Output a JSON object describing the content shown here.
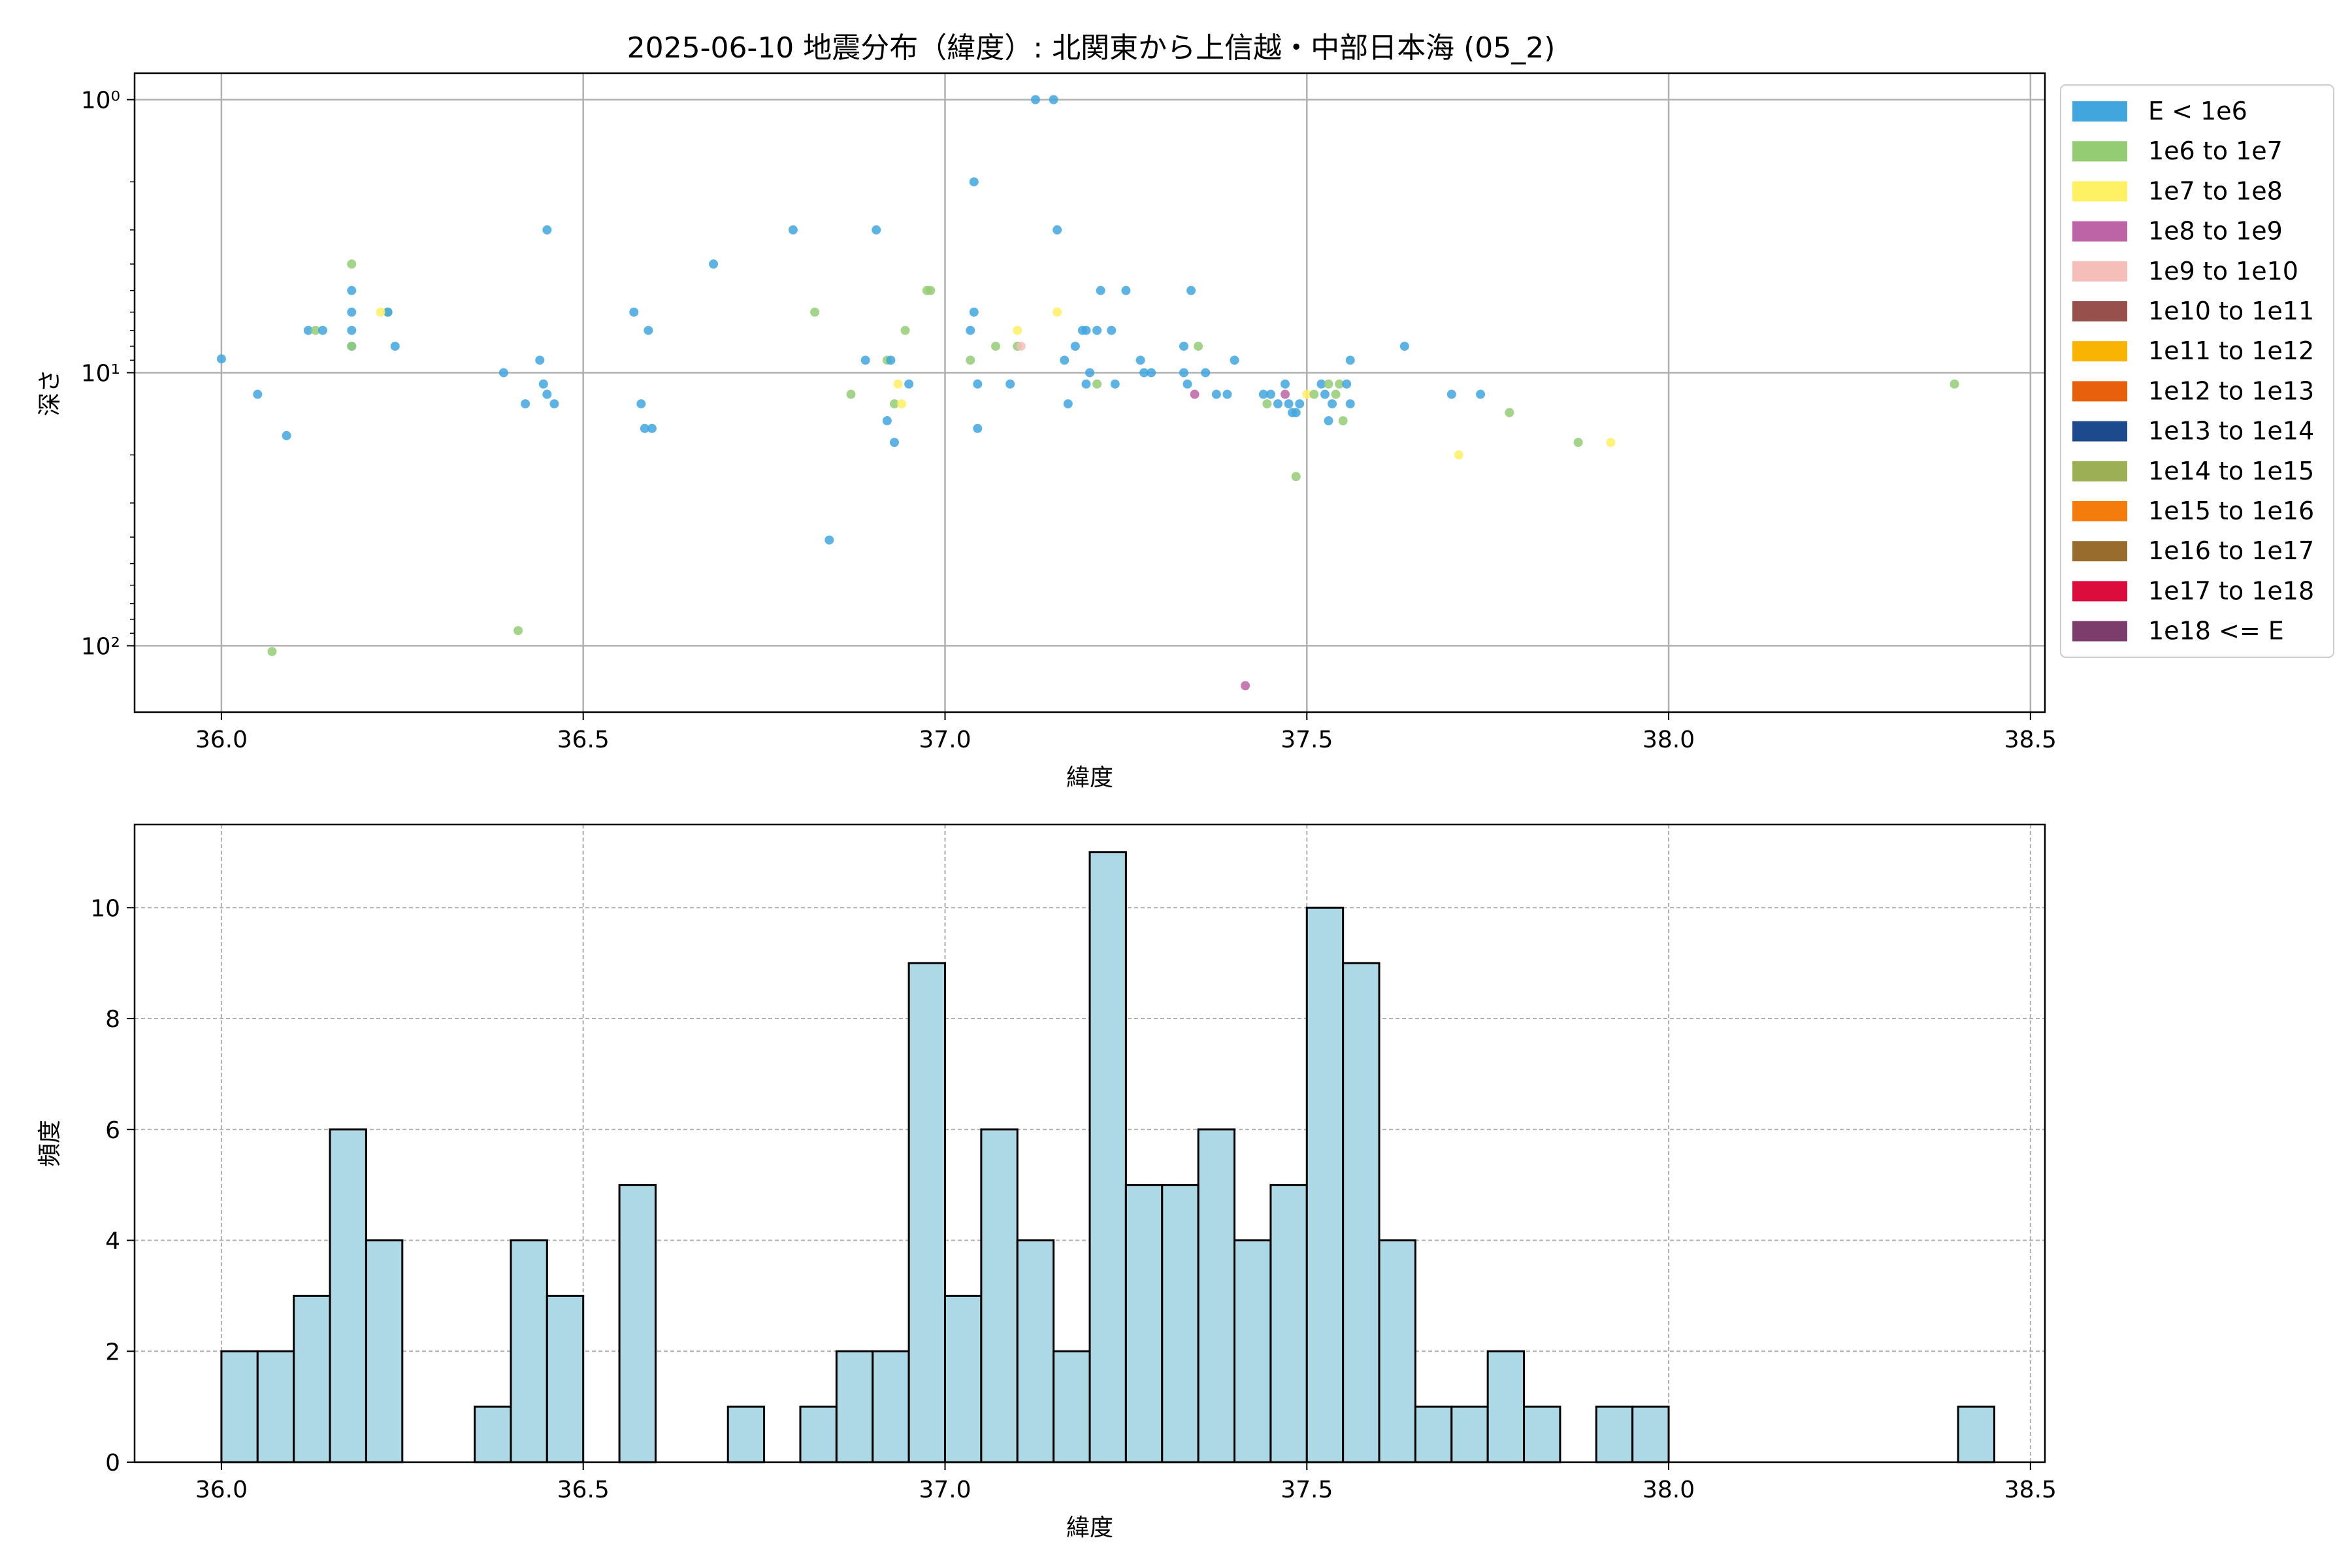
{
  "figure": {
    "title": "2025-06-10 地震分布（緯度）: 北関東から上信越・中部日本海 (05_2)"
  },
  "chart_data": [
    {
      "type": "scatter",
      "xlabel": "緯度",
      "ylabel": "深さ",
      "xlim": [
        35.88,
        38.52
      ],
      "ylim": [
        175,
        0.8
      ],
      "y_scale": "log",
      "y_inverted": true,
      "grid": true,
      "x_ticks": [
        36.0,
        36.5,
        37.0,
        37.5,
        38.0,
        38.5
      ],
      "x_tick_labels": [
        "36.0",
        "36.5",
        "37.0",
        "37.5",
        "38.0",
        "38.5"
      ],
      "y_ticks": [
        1,
        10,
        100
      ],
      "y_tick_labels": [
        "10⁰",
        "10¹",
        "10²"
      ],
      "legend_position": "outside-right",
      "legend": [
        {
          "label": "E < 1e6",
          "color": "#41a6de"
        },
        {
          "label": "1e6 to 1e7",
          "color": "#94cc74"
        },
        {
          "label": "1e7 to 1e8",
          "color": "#fff064"
        },
        {
          "label": "1e8 to 1e9",
          "color": "#bc64a6"
        },
        {
          "label": "1e9 to 1e10",
          "color": "#f5beb8"
        },
        {
          "label": "1e10 to 1e11",
          "color": "#97504c"
        },
        {
          "label": "1e11 to 1e12",
          "color": "#f8b400"
        },
        {
          "label": "1e12 to 1e13",
          "color": "#e8600c"
        },
        {
          "label": "1e13 to 1e14",
          "color": "#1d4a8d"
        },
        {
          "label": "1e14 to 1e15",
          "color": "#9caf54"
        },
        {
          "label": "1e15 to 1e16",
          "color": "#f47c0c"
        },
        {
          "label": "1e16 to 1e17",
          "color": "#986c2c"
        },
        {
          "label": "1e17 to 1e18",
          "color": "#dc0c3c"
        },
        {
          "label": "1e18 <= E",
          "color": "#7c3d6c"
        }
      ],
      "points": [
        {
          "x": 36.0,
          "y": 8.9,
          "c": 0
        },
        {
          "x": 36.05,
          "y": 12,
          "c": 0
        },
        {
          "x": 36.09,
          "y": 17,
          "c": 0
        },
        {
          "x": 36.07,
          "y": 105,
          "c": 1
        },
        {
          "x": 36.12,
          "y": 7,
          "c": 0
        },
        {
          "x": 36.13,
          "y": 7,
          "c": 1
        },
        {
          "x": 36.14,
          "y": 7,
          "c": 0
        },
        {
          "x": 36.18,
          "y": 4,
          "c": 1
        },
        {
          "x": 36.18,
          "y": 5,
          "c": 0
        },
        {
          "x": 36.18,
          "y": 6,
          "c": 0
        },
        {
          "x": 36.18,
          "y": 7,
          "c": 0
        },
        {
          "x": 36.18,
          "y": 8,
          "c": 0
        },
        {
          "x": 36.18,
          "y": 8,
          "c": 1
        },
        {
          "x": 36.23,
          "y": 6,
          "c": 1
        },
        {
          "x": 36.23,
          "y": 6,
          "c": 0
        },
        {
          "x": 36.22,
          "y": 6,
          "c": 2
        },
        {
          "x": 36.24,
          "y": 8,
          "c": 0
        },
        {
          "x": 36.39,
          "y": 10,
          "c": 0
        },
        {
          "x": 36.41,
          "y": 88,
          "c": 1
        },
        {
          "x": 36.42,
          "y": 13,
          "c": 0
        },
        {
          "x": 36.44,
          "y": 9,
          "c": 0
        },
        {
          "x": 36.445,
          "y": 11,
          "c": 0
        },
        {
          "x": 36.45,
          "y": 3,
          "c": 0
        },
        {
          "x": 36.45,
          "y": 12,
          "c": 0
        },
        {
          "x": 36.46,
          "y": 13,
          "c": 0
        },
        {
          "x": 36.57,
          "y": 6,
          "c": 0
        },
        {
          "x": 36.58,
          "y": 13,
          "c": 0
        },
        {
          "x": 36.585,
          "y": 16,
          "c": 0
        },
        {
          "x": 36.59,
          "y": 7,
          "c": 0
        },
        {
          "x": 36.595,
          "y": 16,
          "c": 0
        },
        {
          "x": 36.68,
          "y": 4,
          "c": 0
        },
        {
          "x": 36.79,
          "y": 3,
          "c": 0
        },
        {
          "x": 36.82,
          "y": 6,
          "c": 1
        },
        {
          "x": 36.84,
          "y": 41,
          "c": 0
        },
        {
          "x": 36.87,
          "y": 12,
          "c": 1
        },
        {
          "x": 36.89,
          "y": 9,
          "c": 0
        },
        {
          "x": 36.905,
          "y": 3,
          "c": 0
        },
        {
          "x": 36.92,
          "y": 15,
          "c": 0
        },
        {
          "x": 36.92,
          "y": 9,
          "c": 1
        },
        {
          "x": 36.925,
          "y": 9,
          "c": 0
        },
        {
          "x": 36.93,
          "y": 13,
          "c": 1
        },
        {
          "x": 36.93,
          "y": 18,
          "c": 0
        },
        {
          "x": 36.935,
          "y": 11,
          "c": 2
        },
        {
          "x": 36.94,
          "y": 13,
          "c": 2
        },
        {
          "x": 36.945,
          "y": 7,
          "c": 1
        },
        {
          "x": 36.95,
          "y": 11,
          "c": 0
        },
        {
          "x": 36.975,
          "y": 5,
          "c": 1
        },
        {
          "x": 36.98,
          "y": 5,
          "c": 1
        },
        {
          "x": 37.035,
          "y": 7,
          "c": 0
        },
        {
          "x": 37.035,
          "y": 9,
          "c": 1
        },
        {
          "x": 37.04,
          "y": 6,
          "c": 0
        },
        {
          "x": 37.04,
          "y": 2,
          "c": 0
        },
        {
          "x": 37.045,
          "y": 11,
          "c": 0
        },
        {
          "x": 37.045,
          "y": 16,
          "c": 0
        },
        {
          "x": 37.07,
          "y": 8,
          "c": 1
        },
        {
          "x": 37.09,
          "y": 11,
          "c": 0
        },
        {
          "x": 37.1,
          "y": 7,
          "c": 2
        },
        {
          "x": 37.1,
          "y": 8,
          "c": 1
        },
        {
          "x": 37.105,
          "y": 8,
          "c": 4
        },
        {
          "x": 37.125,
          "y": 1,
          "c": 0
        },
        {
          "x": 37.15,
          "y": 1,
          "c": 0
        },
        {
          "x": 37.155,
          "y": 3,
          "c": 0
        },
        {
          "x": 37.155,
          "y": 6,
          "c": 2
        },
        {
          "x": 37.165,
          "y": 9,
          "c": 0
        },
        {
          "x": 37.17,
          "y": 13,
          "c": 0
        },
        {
          "x": 37.18,
          "y": 8,
          "c": 0
        },
        {
          "x": 37.19,
          "y": 7,
          "c": 0
        },
        {
          "x": 37.195,
          "y": 7,
          "c": 0
        },
        {
          "x": 37.195,
          "y": 11,
          "c": 0
        },
        {
          "x": 37.2,
          "y": 10,
          "c": 0
        },
        {
          "x": 37.21,
          "y": 7,
          "c": 0
        },
        {
          "x": 37.21,
          "y": 11,
          "c": 1
        },
        {
          "x": 37.215,
          "y": 5,
          "c": 0
        },
        {
          "x": 37.23,
          "y": 7,
          "c": 0
        },
        {
          "x": 37.235,
          "y": 11,
          "c": 0
        },
        {
          "x": 37.25,
          "y": 5,
          "c": 0
        },
        {
          "x": 37.27,
          "y": 9,
          "c": 0
        },
        {
          "x": 37.275,
          "y": 10,
          "c": 0
        },
        {
          "x": 37.285,
          "y": 10,
          "c": 0
        },
        {
          "x": 37.33,
          "y": 8,
          "c": 0
        },
        {
          "x": 37.33,
          "y": 10,
          "c": 0
        },
        {
          "x": 37.335,
          "y": 11,
          "c": 0
        },
        {
          "x": 37.34,
          "y": 5,
          "c": 0
        },
        {
          "x": 37.345,
          "y": 12,
          "c": 3
        },
        {
          "x": 37.35,
          "y": 8,
          "c": 1
        },
        {
          "x": 37.36,
          "y": 10,
          "c": 0
        },
        {
          "x": 37.375,
          "y": 12,
          "c": 0
        },
        {
          "x": 37.39,
          "y": 12,
          "c": 0
        },
        {
          "x": 37.4,
          "y": 9,
          "c": 0
        },
        {
          "x": 37.415,
          "y": 140,
          "c": 3
        },
        {
          "x": 37.44,
          "y": 12,
          "c": 0
        },
        {
          "x": 37.445,
          "y": 13,
          "c": 1
        },
        {
          "x": 37.45,
          "y": 12,
          "c": 0
        },
        {
          "x": 37.46,
          "y": 13,
          "c": 0
        },
        {
          "x": 37.47,
          "y": 11,
          "c": 0
        },
        {
          "x": 37.47,
          "y": 12,
          "c": 3
        },
        {
          "x": 37.475,
          "y": 13,
          "c": 0
        },
        {
          "x": 37.48,
          "y": 14,
          "c": 0
        },
        {
          "x": 37.485,
          "y": 14,
          "c": 0
        },
        {
          "x": 37.485,
          "y": 24,
          "c": 1
        },
        {
          "x": 37.49,
          "y": 13,
          "c": 0
        },
        {
          "x": 37.5,
          "y": 12,
          "c": 2
        },
        {
          "x": 37.51,
          "y": 12,
          "c": 1
        },
        {
          "x": 37.52,
          "y": 11,
          "c": 0
        },
        {
          "x": 37.525,
          "y": 12,
          "c": 0
        },
        {
          "x": 37.53,
          "y": 15,
          "c": 0
        },
        {
          "x": 37.53,
          "y": 11,
          "c": 1
        },
        {
          "x": 37.535,
          "y": 13,
          "c": 0
        },
        {
          "x": 37.54,
          "y": 12,
          "c": 1
        },
        {
          "x": 37.545,
          "y": 11,
          "c": 1
        },
        {
          "x": 37.55,
          "y": 15,
          "c": 1
        },
        {
          "x": 37.555,
          "y": 11,
          "c": 0
        },
        {
          "x": 37.56,
          "y": 9,
          "c": 0
        },
        {
          "x": 37.56,
          "y": 13,
          "c": 0
        },
        {
          "x": 37.635,
          "y": 8,
          "c": 0
        },
        {
          "x": 37.7,
          "y": 12,
          "c": 0
        },
        {
          "x": 37.71,
          "y": 20,
          "c": 2
        },
        {
          "x": 37.74,
          "y": 12,
          "c": 0
        },
        {
          "x": 37.78,
          "y": 14,
          "c": 1
        },
        {
          "x": 37.875,
          "y": 18,
          "c": 1
        },
        {
          "x": 37.92,
          "y": 18,
          "c": 2
        },
        {
          "x": 38.395,
          "y": 11,
          "c": 1
        }
      ]
    },
    {
      "type": "bar",
      "xlabel": "緯度",
      "ylabel": "頻度",
      "xlim": [
        35.88,
        38.52
      ],
      "ylim": [
        0,
        11.5
      ],
      "grid": true,
      "x_ticks": [
        36.0,
        36.5,
        37.0,
        37.5,
        38.0,
        38.5
      ],
      "x_tick_labels": [
        "36.0",
        "36.5",
        "37.0",
        "37.5",
        "38.0",
        "38.5"
      ],
      "y_ticks": [
        0,
        2,
        4,
        6,
        8,
        10
      ],
      "y_tick_labels": [
        "0",
        "2",
        "4",
        "6",
        "8",
        "10"
      ],
      "bar_color": "#add8e6",
      "bin_start": 36.0,
      "bin_width": 0.05,
      "values": [
        2,
        2,
        3,
        6,
        4,
        0,
        0,
        1,
        4,
        3,
        0,
        5,
        0,
        0,
        1,
        0,
        1,
        2,
        2,
        9,
        3,
        6,
        4,
        2,
        11,
        5,
        5,
        6,
        4,
        5,
        10,
        9,
        4,
        1,
        1,
        2,
        1,
        0,
        1,
        1,
        0,
        0,
        0,
        0,
        0,
        0,
        0,
        0,
        1
      ]
    }
  ]
}
